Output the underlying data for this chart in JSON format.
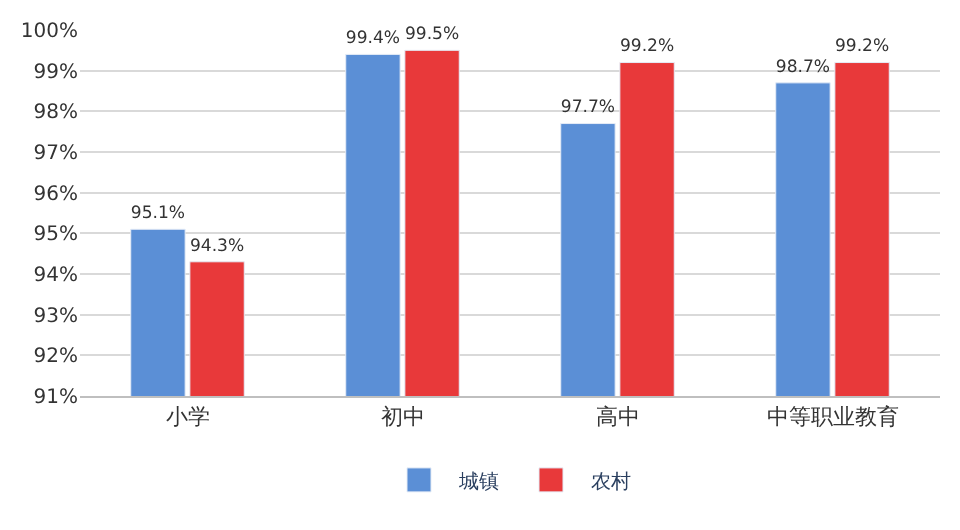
{
  "chart_data": {
    "type": "bar",
    "categories": [
      "小学",
      "初中",
      "高中",
      "中等职业教育"
    ],
    "series": [
      {
        "name": "城镇",
        "color": "#5b8fd6",
        "values": [
          95.1,
          99.4,
          97.7,
          98.7
        ],
        "value_labels": [
          "95.1%",
          "99.4%",
          "97.7%",
          "98.7%"
        ]
      },
      {
        "name": "农村",
        "color": "#e8393a",
        "values": [
          94.3,
          99.5,
          99.2,
          99.2
        ],
        "value_labels": [
          "94.3%",
          "99.5%",
          "99.2%",
          "99.2%"
        ]
      }
    ],
    "ylim": [
      91,
      100
    ],
    "yticks": [
      {
        "value": 91,
        "label": "91%"
      },
      {
        "value": 92,
        "label": "92%"
      },
      {
        "value": 93,
        "label": "93%"
      },
      {
        "value": 94,
        "label": "94%"
      },
      {
        "value": 95,
        "label": "95%"
      },
      {
        "value": 96,
        "label": "96%"
      },
      {
        "value": 97,
        "label": "97%"
      },
      {
        "value": 98,
        "label": "98%"
      },
      {
        "value": 99,
        "label": "99%"
      },
      {
        "value": 100,
        "label": "100%"
      }
    ],
    "grid": "y",
    "legend": "bottom"
  }
}
